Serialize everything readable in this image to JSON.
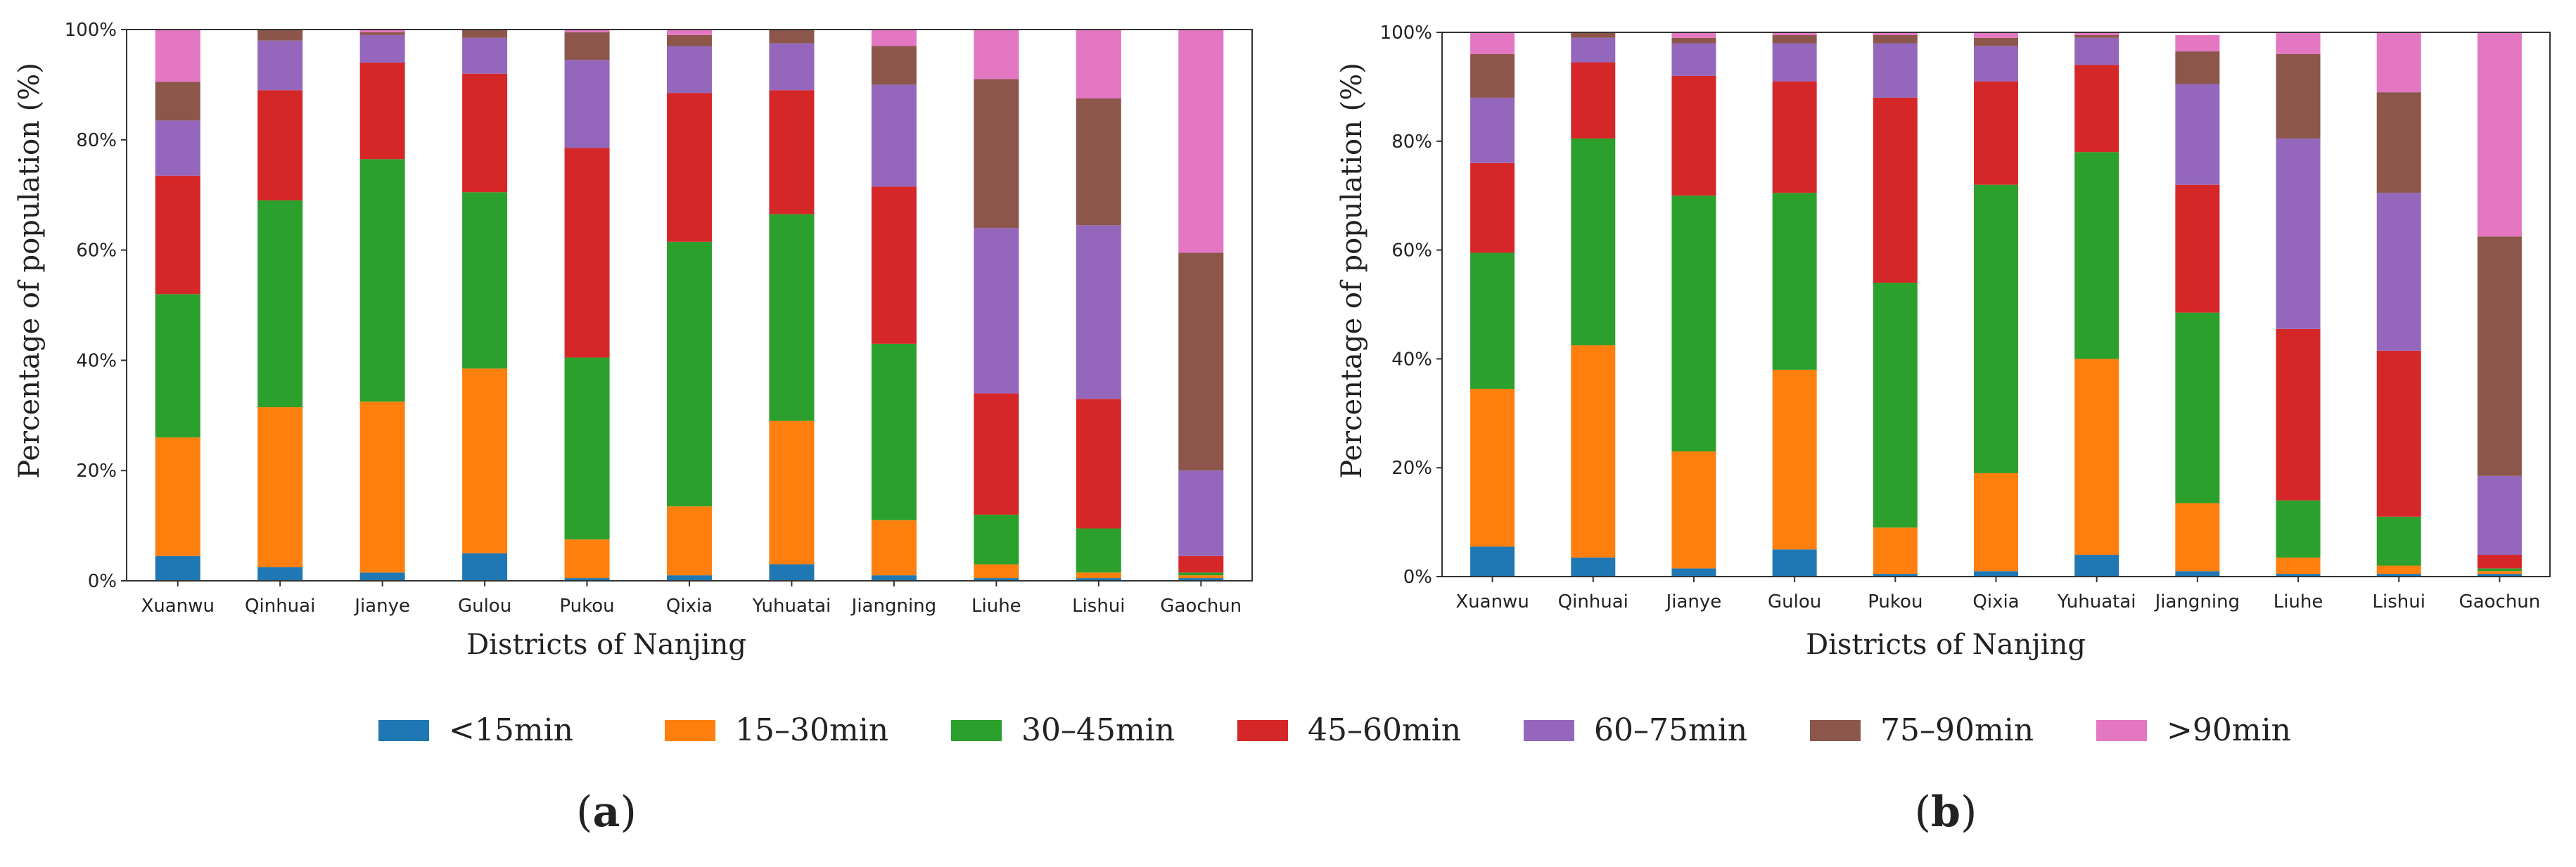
{
  "chart_data": [
    {
      "type": "bar",
      "stacked": true,
      "panel_label": "a",
      "categories": [
        "Xuanwu",
        "Qinhuai",
        "Jianye",
        "Gulou",
        "Pukou",
        "Qixia",
        "Yuhuatai",
        "Jiangning",
        "Liuhe",
        "Lishui",
        "Gaochun"
      ],
      "xlabel": "Districts of Nanjing",
      "ylabel": "Percentage of population (%)",
      "ylim": [
        0,
        100
      ],
      "yticks": [
        "0%",
        "20%",
        "40%",
        "60%",
        "80%",
        "100%"
      ],
      "grid": false,
      "legend": "bottom (shared)",
      "series": [
        {
          "name": "<15min",
          "values": [
            4.5,
            2.5,
            1.5,
            5,
            0.5,
            1,
            3,
            1,
            0.5,
            0.5,
            0.5
          ]
        },
        {
          "name": "15–30min",
          "values": [
            21.5,
            29,
            31,
            33.5,
            7,
            12.5,
            26,
            10,
            2.5,
            1,
            0.5
          ]
        },
        {
          "name": "30–45min",
          "values": [
            26,
            37.5,
            44,
            32,
            33,
            48,
            37.5,
            32,
            9,
            8,
            0.5
          ]
        },
        {
          "name": "45–60min",
          "values": [
            21.5,
            20,
            17.5,
            21.5,
            38,
            27,
            22.5,
            28.5,
            22,
            23.5,
            3
          ]
        },
        {
          "name": "60–75min",
          "values": [
            10,
            9,
            5,
            6.5,
            16,
            8.5,
            8.5,
            18.5,
            30,
            31.5,
            15.5
          ]
        },
        {
          "name": "75–90min",
          "values": [
            7,
            2,
            0.5,
            1.5,
            5,
            2,
            2.5,
            7,
            27,
            23,
            39.5
          ]
        },
        {
          "name": ">90min",
          "values": [
            9.5,
            0,
            0.5,
            0,
            0.5,
            1,
            0,
            3,
            9,
            12.5,
            40.5
          ]
        }
      ]
    },
    {
      "type": "bar",
      "stacked": true,
      "panel_label": "b",
      "categories": [
        "Xuanwu",
        "Qinhuai",
        "Jianye",
        "Gulou",
        "Pukou",
        "Qixia",
        "Yuhuatai",
        "Jiangning",
        "Liuhe",
        "Lishui",
        "Gaochun"
      ],
      "xlabel": "Districts of Nanjing",
      "ylabel": "Percentage of population (%)",
      "ylim": [
        0,
        100
      ],
      "yticks": [
        "0%",
        "20%",
        "40%",
        "60%",
        "80%",
        "100%"
      ],
      "grid": false,
      "legend": "bottom (shared)",
      "series": [
        {
          "name": "<15min",
          "values": [
            5.5,
            3.5,
            1.5,
            5,
            0.5,
            1,
            4,
            1,
            0.5,
            0.5,
            0.5
          ]
        },
        {
          "name": "15–30min",
          "values": [
            29,
            39,
            21.5,
            33,
            8.5,
            18,
            36,
            12.5,
            3,
            1.5,
            0.5
          ]
        },
        {
          "name": "30–45min",
          "values": [
            25,
            38,
            47,
            32.5,
            45,
            53,
            38,
            35,
            10.5,
            9,
            0.5
          ]
        },
        {
          "name": "45–60min",
          "values": [
            16.5,
            14,
            22,
            20.5,
            34,
            19,
            16,
            23.5,
            31.5,
            30.5,
            2.5
          ]
        },
        {
          "name": "60–75min",
          "values": [
            12,
            4.5,
            6,
            7,
            10,
            6.5,
            5,
            18.5,
            35,
            29,
            14.5
          ]
        },
        {
          "name": "75–90min",
          "values": [
            8,
            1,
            1,
            1.5,
            1.5,
            1.5,
            0.5,
            6,
            15.5,
            18.5,
            44
          ]
        },
        {
          "name": ">90min",
          "values": [
            4,
            0,
            1,
            0.5,
            0.5,
            1,
            0.5,
            3,
            4,
            11,
            37.5
          ]
        }
      ]
    }
  ],
  "colors": {
    "<15min": "#1f77b4",
    "15–30min": "#ff7f0e",
    "30–45min": "#2ca02c",
    "45–60min": "#d62728",
    "60–75min": "#9467bd",
    "75–90min": "#8c564b",
    ">90min": "#e377c2"
  },
  "legend_items": [
    "<15min",
    "15–30min",
    "30–45min",
    "45–60min",
    "60–75min",
    "75–90min",
    ">90min"
  ]
}
